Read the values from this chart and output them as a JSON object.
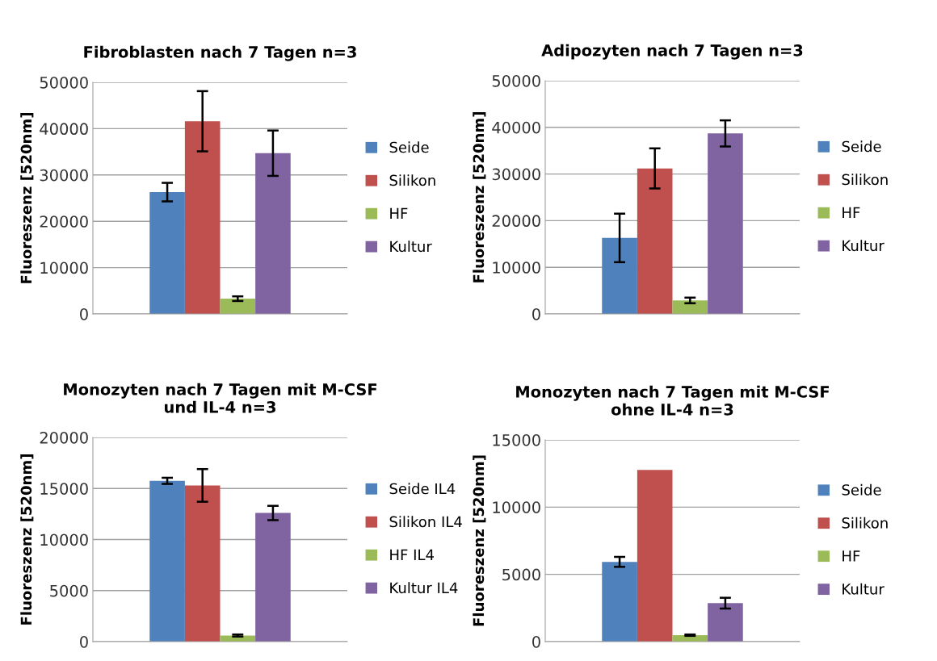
{
  "chart_data": [
    {
      "type": "bar",
      "title": "Fibroblasten nach 7 Tagen n=3",
      "ylabel": "Fluoreszenz [520nm]",
      "categories": [
        null
      ],
      "ylim": [
        0,
        50000
      ],
      "yticks": [
        0,
        10000,
        20000,
        30000,
        40000,
        50000
      ],
      "grid": "y",
      "legend": "right",
      "series": [
        {
          "name": "Seide",
          "color": "#4f81bd",
          "values": [
            26300
          ],
          "errors": [
            2000
          ]
        },
        {
          "name": "Silikon",
          "color": "#c0504d",
          "values": [
            41600
          ],
          "errors": [
            6500
          ]
        },
        {
          "name": "HF",
          "color": "#9bbb59",
          "values": [
            3300
          ],
          "errors": [
            500
          ]
        },
        {
          "name": "Kultur",
          "color": "#8064a2",
          "values": [
            34700
          ],
          "errors": [
            4900
          ]
        }
      ]
    },
    {
      "type": "bar",
      "title": "Adipozyten nach 7 Tagen n=3",
      "ylabel": "Fluoreszenz [520nm]",
      "categories": [
        null
      ],
      "ylim": [
        0,
        50000
      ],
      "yticks": [
        0,
        10000,
        20000,
        30000,
        40000,
        50000
      ],
      "grid": "y",
      "legend": "right",
      "series": [
        {
          "name": "Seide",
          "color": "#4f81bd",
          "values": [
            16300
          ],
          "errors": [
            5200
          ]
        },
        {
          "name": "Silikon",
          "color": "#c0504d",
          "values": [
            31200
          ],
          "errors": [
            4300
          ]
        },
        {
          "name": "HF",
          "color": "#9bbb59",
          "values": [
            2900
          ],
          "errors": [
            600
          ]
        },
        {
          "name": "Kultur",
          "color": "#8064a2",
          "values": [
            38700
          ],
          "errors": [
            2800
          ]
        }
      ]
    },
    {
      "type": "bar",
      "title": "Monozyten nach 7 Tagen mit M-CSF\nund IL-4 n=3",
      "ylabel": "Fluoreszenz [520nm]",
      "categories": [
        null
      ],
      "ylim": [
        0,
        20000
      ],
      "yticks": [
        0,
        5000,
        10000,
        15000,
        20000
      ],
      "grid": "y",
      "legend": "right",
      "series": [
        {
          "name": "Seide IL4",
          "color": "#4f81bd",
          "values": [
            15750
          ],
          "errors": [
            300
          ]
        },
        {
          "name": "Silikon IL4",
          "color": "#c0504d",
          "values": [
            15300
          ],
          "errors": [
            1600
          ]
        },
        {
          "name": "HF IL4",
          "color": "#9bbb59",
          "values": [
            600
          ],
          "errors": [
            100
          ]
        },
        {
          "name": "Kultur IL4",
          "color": "#8064a2",
          "values": [
            12600
          ],
          "errors": [
            700
          ]
        }
      ]
    },
    {
      "type": "bar",
      "title": "Monozyten nach 7 Tagen mit M-CSF\nohne IL-4 n=3",
      "ylabel": "Fluoreszenz [520nm]",
      "categories": [
        null
      ],
      "ylim": [
        0,
        15000
      ],
      "yticks": [
        0,
        5000,
        10000,
        15000
      ],
      "grid": "y",
      "legend": "right",
      "series": [
        {
          "name": "Seide",
          "color": "#4f81bd",
          "values": [
            5930
          ],
          "errors": [
            370
          ]
        },
        {
          "name": "Silikon",
          "color": "#c0504d",
          "values": [
            12760
          ]
        },
        {
          "name": "HF",
          "color": "#9bbb59",
          "values": [
            480
          ],
          "errors": [
            50
          ]
        },
        {
          "name": "Kultur",
          "color": "#8064a2",
          "values": [
            2860
          ],
          "errors": [
            400
          ]
        }
      ]
    }
  ]
}
